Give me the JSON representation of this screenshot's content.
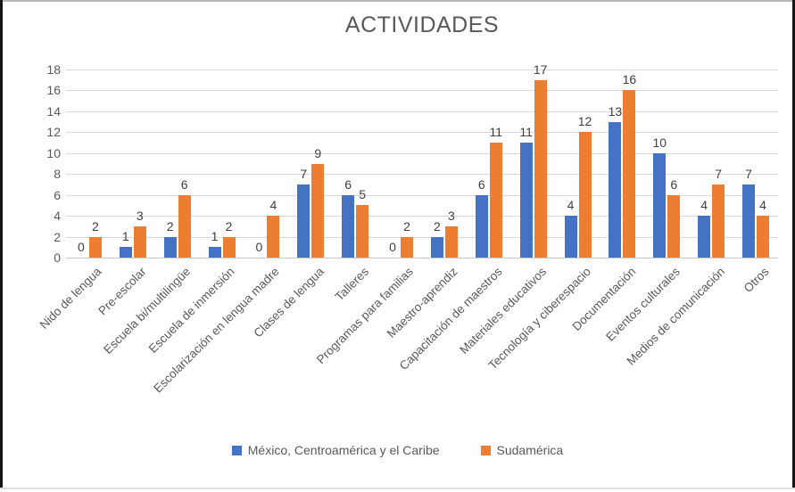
{
  "chart_data": {
    "type": "bar",
    "title": "ACTIVIDADES",
    "categories": [
      "Nido de lengua",
      "Pre-escolar",
      "Escuela bi/multilingüe",
      "Escuela de inmersión",
      "Escolarización en lengua madre",
      "Clases de lengua",
      "Talleres",
      "Programas para familias",
      "Maestro-aprendiz",
      "Capacitación de maestros",
      "Materiales educativos",
      "Tecnología y ciberespacio",
      "Documentación",
      "Eventos culturales",
      "Medios de comunicación",
      "Otros"
    ],
    "series": [
      {
        "name": "México, Centroamérica y el Caribe",
        "color": "#4472C4",
        "values": [
          0,
          1,
          2,
          1,
          0,
          7,
          6,
          0,
          2,
          6,
          11,
          4,
          13,
          10,
          4,
          7
        ]
      },
      {
        "name": "Sudamérica",
        "color": "#ED7D31",
        "values": [
          2,
          3,
          6,
          2,
          4,
          9,
          5,
          2,
          3,
          11,
          17,
          12,
          16,
          6,
          7,
          4
        ]
      }
    ],
    "ylim": [
      0,
      18
    ],
    "yticks": [
      0,
      2,
      4,
      6,
      8,
      10,
      12,
      14,
      16,
      18
    ],
    "grid": true,
    "data_labels": true,
    "legend_position": "bottom",
    "xlabel": "",
    "ylabel": ""
  },
  "colors": {
    "gridline": "#D9D9D9",
    "axis_text": "#595959",
    "data_label_text": "#404040",
    "title_text": "#595959"
  }
}
